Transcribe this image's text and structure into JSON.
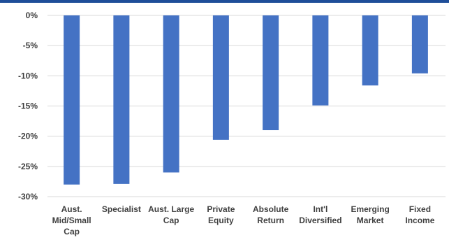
{
  "chart_data": {
    "type": "bar",
    "categories": [
      [
        "Aust.",
        "Mid/Small",
        "Cap"
      ],
      [
        "Specialist"
      ],
      [
        "Aust. Large",
        "Cap"
      ],
      [
        "Private",
        "Equity"
      ],
      [
        "Absolute",
        "Return"
      ],
      [
        "Int'l",
        "Diversified"
      ],
      [
        "Emerging",
        "Market"
      ],
      [
        "Fixed",
        "Income"
      ]
    ],
    "values": [
      -28.0,
      -27.9,
      -26.0,
      -20.6,
      -19.0,
      -14.9,
      -11.6,
      -9.6
    ],
    "ylim": [
      -30,
      0
    ],
    "yticks": [
      0,
      -5,
      -10,
      -15,
      -20,
      -25,
      -30
    ],
    "ytick_labels": [
      "0%",
      "-5%",
      "-10%",
      "-15%",
      "-20%",
      "-25%",
      "-30%"
    ],
    "title": "",
    "xlabel": "",
    "ylabel": "",
    "grid": true,
    "bar_color": "#4472c4",
    "legend": "none"
  }
}
